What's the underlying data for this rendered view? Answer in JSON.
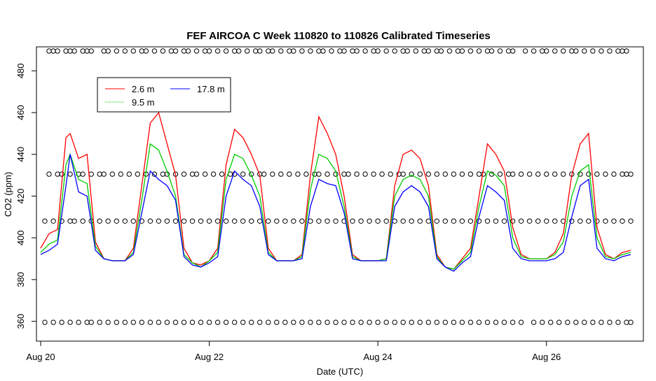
{
  "chart_data": {
    "type": "line",
    "title": "FEF AIRCOA C  Week 110820 to 110826  Calibrated Timeseries",
    "xlabel": "Date (UTC)",
    "ylabel": "CO2 (ppm)",
    "xlim": [
      -0.05,
      7.15
    ],
    "ylim": [
      350.5,
      491.5
    ],
    "x_ticks": [
      {
        "value": 0,
        "label": "Aug 20"
      },
      {
        "value": 2,
        "label": "Aug 22"
      },
      {
        "value": 4,
        "label": "Aug 24"
      },
      {
        "value": 6,
        "label": "Aug 26"
      }
    ],
    "y_ticks": [
      360,
      380,
      400,
      420,
      440,
      460,
      480
    ],
    "legend": {
      "position": "top-left",
      "entries": [
        {
          "name": "2.6 m",
          "color": "#ff0000"
        },
        {
          "name": "9.5 m",
          "color": "#00cc00"
        },
        {
          "name": "17.8 m",
          "color": "#0000ff"
        }
      ]
    },
    "series": [
      {
        "name": "2.6 m",
        "color": "#ff0000",
        "x": [
          0,
          0.1,
          0.2,
          0.3,
          0.35,
          0.45,
          0.55,
          0.65,
          0.75,
          0.85,
          1.0,
          1.1,
          1.2,
          1.3,
          1.4,
          1.5,
          1.6,
          1.7,
          1.8,
          1.9,
          2.0,
          2.1,
          2.2,
          2.3,
          2.4,
          2.5,
          2.6,
          2.7,
          2.8,
          3.0,
          3.1,
          3.2,
          3.3,
          3.4,
          3.5,
          3.6,
          3.7,
          3.8,
          4.0,
          4.1,
          4.2,
          4.3,
          4.4,
          4.5,
          4.6,
          4.7,
          4.8,
          4.9,
          5.0,
          5.1,
          5.2,
          5.3,
          5.4,
          5.5,
          5.6,
          5.7,
          5.8,
          6.0,
          6.1,
          6.2,
          6.3,
          6.4,
          6.5,
          6.6,
          6.7,
          6.8,
          6.9,
          7.0
        ],
        "values": [
          395,
          402,
          404,
          448,
          450,
          438,
          440,
          398,
          390,
          389,
          389,
          395,
          425,
          455,
          460,
          445,
          430,
          395,
          388,
          387,
          389,
          395,
          435,
          452,
          448,
          440,
          430,
          395,
          389,
          389,
          392,
          430,
          458,
          450,
          440,
          420,
          392,
          389,
          389,
          390,
          425,
          440,
          442,
          438,
          425,
          392,
          386,
          385,
          390,
          395,
          420,
          445,
          440,
          432,
          405,
          392,
          390,
          390,
          393,
          402,
          430,
          445,
          450,
          405,
          392,
          390,
          393,
          394
        ]
      },
      {
        "name": "9.5 m",
        "color": "#00cc00",
        "x": [
          0,
          0.1,
          0.2,
          0.3,
          0.35,
          0.45,
          0.55,
          0.65,
          0.75,
          0.85,
          1.0,
          1.1,
          1.2,
          1.3,
          1.4,
          1.5,
          1.6,
          1.7,
          1.8,
          1.9,
          2.0,
          2.1,
          2.2,
          2.3,
          2.4,
          2.5,
          2.6,
          2.7,
          2.8,
          3.0,
          3.1,
          3.2,
          3.3,
          3.4,
          3.5,
          3.6,
          3.7,
          3.8,
          4.0,
          4.1,
          4.2,
          4.3,
          4.4,
          4.5,
          4.6,
          4.7,
          4.8,
          4.9,
          5.0,
          5.1,
          5.2,
          5.3,
          5.4,
          5.5,
          5.6,
          5.7,
          5.8,
          6.0,
          6.1,
          6.2,
          6.3,
          6.4,
          6.5,
          6.6,
          6.7,
          6.8,
          6.9,
          7.0
        ],
        "values": [
          393,
          397,
          399,
          435,
          440,
          428,
          426,
          396,
          390,
          389,
          389,
          393,
          418,
          445,
          442,
          432,
          420,
          392,
          388,
          386,
          389,
          393,
          428,
          440,
          438,
          430,
          420,
          393,
          389,
          389,
          391,
          423,
          440,
          438,
          432,
          415,
          391,
          389,
          389,
          390,
          420,
          428,
          430,
          428,
          420,
          391,
          386,
          385,
          389,
          393,
          415,
          432,
          430,
          425,
          400,
          391,
          390,
          390,
          392,
          398,
          420,
          432,
          435,
          400,
          391,
          390,
          392,
          393
        ]
      },
      {
        "name": "17.8 m",
        "color": "#0000ff",
        "x": [
          0,
          0.1,
          0.2,
          0.3,
          0.35,
          0.45,
          0.55,
          0.65,
          0.75,
          0.85,
          1.0,
          1.1,
          1.2,
          1.3,
          1.4,
          1.5,
          1.6,
          1.7,
          1.8,
          1.9,
          2.0,
          2.1,
          2.2,
          2.3,
          2.4,
          2.5,
          2.6,
          2.7,
          2.8,
          3.0,
          3.1,
          3.2,
          3.3,
          3.4,
          3.5,
          3.6,
          3.7,
          3.8,
          4.0,
          4.1,
          4.2,
          4.3,
          4.4,
          4.5,
          4.6,
          4.7,
          4.8,
          4.9,
          5.0,
          5.1,
          5.2,
          5.3,
          5.4,
          5.5,
          5.6,
          5.7,
          5.8,
          6.0,
          6.1,
          6.2,
          6.3,
          6.4,
          6.5,
          6.6,
          6.7,
          6.8,
          6.9,
          7.0
        ],
        "values": [
          392,
          394,
          397,
          425,
          440,
          422,
          420,
          394,
          390,
          389,
          389,
          392,
          412,
          432,
          428,
          425,
          418,
          391,
          387,
          386,
          388,
          391,
          420,
          432,
          428,
          425,
          415,
          392,
          389,
          389,
          390,
          415,
          428,
          426,
          425,
          412,
          390,
          389,
          389,
          389,
          415,
          422,
          425,
          422,
          415,
          390,
          386,
          384,
          388,
          391,
          410,
          425,
          422,
          418,
          395,
          390,
          389,
          389,
          390,
          393,
          410,
          425,
          428,
          395,
          390,
          389,
          391,
          392
        ]
      }
    ],
    "calibration_points": [
      {
        "y": 489.5,
        "x": [
          0.1,
          0.15,
          0.2,
          0.3,
          0.35,
          0.4,
          0.5,
          0.55,
          0.6,
          0.75,
          0.8,
          0.9,
          1.0,
          1.1,
          1.2,
          1.25,
          1.35,
          1.45,
          1.55,
          1.6,
          1.7,
          1.75,
          1.85,
          1.95,
          2.0,
          2.1,
          2.2,
          2.3,
          2.35,
          2.45,
          2.55,
          2.6,
          2.7,
          2.75,
          2.85,
          2.95,
          3.0,
          3.1,
          3.2,
          3.3,
          3.35,
          3.45,
          3.55,
          3.6,
          3.7,
          3.75,
          3.85,
          3.95,
          4.0,
          4.1,
          4.2,
          4.3,
          4.35,
          4.45,
          4.55,
          4.6,
          4.7,
          4.75,
          4.85,
          4.95,
          5.0,
          5.1,
          5.2,
          5.3,
          5.35,
          5.45,
          5.55,
          5.6,
          5.75,
          5.85,
          5.95,
          6.0,
          6.1,
          6.2,
          6.3,
          6.35,
          6.45,
          6.55,
          6.65,
          6.75,
          6.85,
          6.9,
          6.95
        ]
      },
      {
        "y": 430.5,
        "x": [
          0.1,
          0.2,
          0.25,
          0.35,
          0.45,
          0.5,
          0.6,
          0.7,
          0.75,
          0.85,
          0.95,
          1.05,
          1.15,
          1.25,
          1.35,
          1.45,
          1.5,
          1.6,
          1.7,
          1.8,
          1.85,
          1.95,
          2.05,
          2.15,
          2.25,
          2.3,
          2.4,
          2.5,
          2.6,
          2.65,
          2.75,
          2.85,
          2.95,
          3.05,
          3.15,
          3.25,
          3.3,
          3.4,
          3.5,
          3.6,
          3.65,
          3.75,
          3.85,
          3.95,
          4.05,
          4.15,
          4.25,
          4.3,
          4.4,
          4.5,
          4.6,
          4.7,
          4.8,
          4.9,
          5.0,
          5.1,
          5.2,
          5.25,
          5.35,
          5.45,
          5.55,
          5.6,
          5.7,
          5.8,
          5.9,
          6.0,
          6.1,
          6.2,
          6.3,
          6.4,
          6.5,
          6.6,
          6.7,
          6.8,
          6.9,
          6.95,
          7.0
        ]
      },
      {
        "y": 408,
        "x": [
          0.05,
          0.15,
          0.25,
          0.35,
          0.4,
          0.5,
          0.6,
          0.7,
          0.8,
          0.9,
          1.0,
          1.1,
          1.2,
          1.3,
          1.4,
          1.5,
          1.6,
          1.7,
          1.8,
          1.9,
          2.0,
          2.1,
          2.2,
          2.3,
          2.4,
          2.5,
          2.6,
          2.7,
          2.8,
          2.9,
          3.0,
          3.1,
          3.2,
          3.3,
          3.4,
          3.5,
          3.6,
          3.7,
          3.8,
          3.9,
          4.0,
          4.1,
          4.2,
          4.3,
          4.4,
          4.5,
          4.6,
          4.7,
          4.8,
          4.9,
          5.0,
          5.1,
          5.2,
          5.3,
          5.4,
          5.5,
          5.6,
          5.7,
          5.8,
          5.9,
          6.0,
          6.1,
          6.2,
          6.3,
          6.4,
          6.5,
          6.6,
          6.7,
          6.8,
          6.9,
          7.0
        ]
      },
      {
        "y": 359.5,
        "x": [
          0.05,
          0.15,
          0.25,
          0.35,
          0.45,
          0.55,
          0.6,
          0.7,
          0.8,
          0.9,
          1.0,
          1.1,
          1.2,
          1.3,
          1.4,
          1.5,
          1.6,
          1.7,
          1.8,
          1.9,
          2.0,
          2.1,
          2.2,
          2.3,
          2.4,
          2.5,
          2.6,
          2.7,
          2.8,
          2.9,
          3.0,
          3.1,
          3.2,
          3.3,
          3.4,
          3.5,
          3.6,
          3.7,
          3.8,
          3.9,
          4.0,
          4.1,
          4.2,
          4.3,
          4.4,
          4.5,
          4.6,
          4.7,
          4.8,
          4.9,
          5.0,
          5.1,
          5.2,
          5.3,
          5.4,
          5.5,
          5.6,
          5.7,
          5.85,
          5.95,
          6.05,
          6.15,
          6.25,
          6.35,
          6.45,
          6.55,
          6.65,
          6.75,
          6.85,
          6.95,
          7.0
        ]
      }
    ]
  }
}
